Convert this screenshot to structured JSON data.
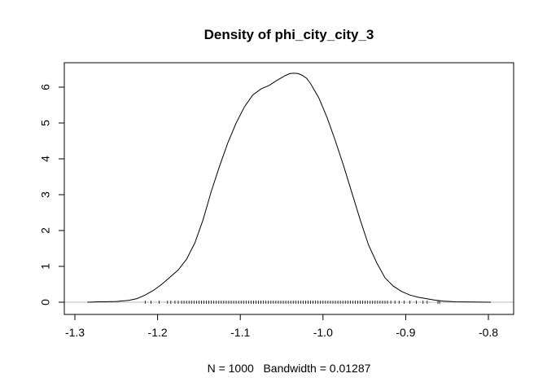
{
  "chart_data": {
    "type": "line",
    "title": "Density of phi_city_city_3",
    "xlabel": "N = 1000   Bandwidth = 0.01287",
    "ylabel": "",
    "xlim": [
      -1.29,
      -0.79
    ],
    "ylim": [
      0,
      6.4
    ],
    "xticks": [
      -1.3,
      -1.2,
      -1.1,
      -1.0,
      -0.9,
      -0.8
    ],
    "xtick_labels": [
      "-1.3",
      "-1.2",
      "-1.1",
      "-1.0",
      "-0.9",
      "-0.8"
    ],
    "yticks": [
      0,
      1,
      2,
      3,
      4,
      5,
      6
    ],
    "ytick_labels": [
      "0",
      "1",
      "2",
      "3",
      "4",
      "5",
      "6"
    ],
    "grid": false,
    "baseline": 0,
    "series": [
      {
        "x": [
          -1.285,
          -1.27,
          -1.25,
          -1.235,
          -1.225,
          -1.215,
          -1.205,
          -1.195,
          -1.185,
          -1.175,
          -1.165,
          -1.155,
          -1.145,
          -1.135,
          -1.125,
          -1.115,
          -1.105,
          -1.095,
          -1.085,
          -1.075,
          -1.065,
          -1.055,
          -1.045,
          -1.04,
          -1.035,
          -1.03,
          -1.025,
          -1.02,
          -1.015,
          -1.005,
          -0.995,
          -0.985,
          -0.975,
          -0.965,
          -0.955,
          -0.945,
          -0.935,
          -0.925,
          -0.915,
          -0.905,
          -0.895,
          -0.885,
          -0.875,
          -0.865,
          -0.855,
          -0.84,
          -0.82,
          -0.797
        ],
        "y": [
          0.0,
          0.01,
          0.02,
          0.05,
          0.1,
          0.2,
          0.33,
          0.5,
          0.7,
          0.9,
          1.2,
          1.65,
          2.3,
          3.1,
          3.8,
          4.45,
          5.0,
          5.45,
          5.78,
          5.95,
          6.05,
          6.2,
          6.33,
          6.38,
          6.39,
          6.38,
          6.33,
          6.25,
          6.1,
          5.7,
          5.15,
          4.5,
          3.8,
          3.05,
          2.3,
          1.6,
          1.1,
          0.68,
          0.45,
          0.3,
          0.2,
          0.14,
          0.1,
          0.06,
          0.03,
          0.01,
          0.005,
          0.0
        ]
      }
    ],
    "rug": [
      -1.215,
      -1.208,
      -1.198,
      -1.188,
      -1.184,
      -1.179,
      -1.175,
      -1.171,
      -1.168,
      -1.165,
      -1.162,
      -1.159,
      -1.156,
      -1.153,
      -1.15,
      -1.147,
      -1.144,
      -1.141,
      -1.138,
      -1.135,
      -1.132,
      -1.129,
      -1.126,
      -1.123,
      -1.12,
      -1.117,
      -1.114,
      -1.111,
      -1.108,
      -1.105,
      -1.102,
      -1.099,
      -1.096,
      -1.093,
      -1.09,
      -1.087,
      -1.084,
      -1.081,
      -1.078,
      -1.075,
      -1.072,
      -1.069,
      -1.066,
      -1.063,
      -1.06,
      -1.057,
      -1.054,
      -1.051,
      -1.048,
      -1.045,
      -1.042,
      -1.039,
      -1.036,
      -1.033,
      -1.03,
      -1.027,
      -1.024,
      -1.021,
      -1.018,
      -1.015,
      -1.012,
      -1.009,
      -1.006,
      -1.003,
      -1.0,
      -0.997,
      -0.994,
      -0.991,
      -0.988,
      -0.985,
      -0.982,
      -0.979,
      -0.976,
      -0.973,
      -0.97,
      -0.967,
      -0.964,
      -0.961,
      -0.958,
      -0.955,
      -0.952,
      -0.949,
      -0.946,
      -0.943,
      -0.94,
      -0.937,
      -0.934,
      -0.931,
      -0.928,
      -0.925,
      -0.922,
      -0.918,
      -0.913,
      -0.908,
      -0.902,
      -0.895,
      -0.887,
      -0.879,
      -0.874,
      -0.861,
      -0.859
    ]
  }
}
